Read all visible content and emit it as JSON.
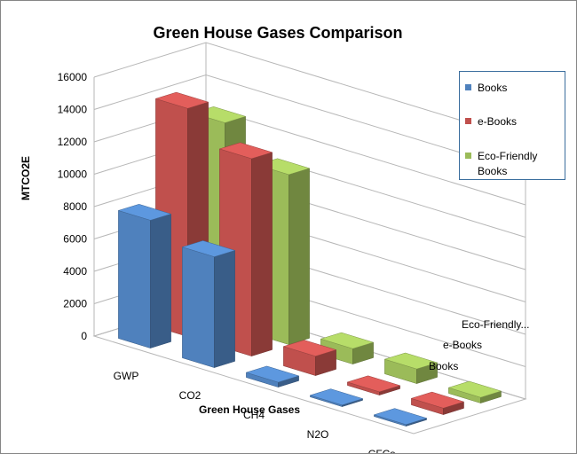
{
  "chart_data": {
    "type": "bar",
    "subtype": "3d-clustered-column",
    "title": "Green House Gases Comparison",
    "xlabel": "Green House Gases",
    "ylabel": "MTCO2E",
    "categories": [
      "GWP",
      "CO2",
      "CH4",
      "N2O",
      "CFCs"
    ],
    "depth_labels": [
      "Eco-Friendly...",
      "e-Books",
      "Books"
    ],
    "yticks": [
      0,
      2000,
      4000,
      6000,
      8000,
      10000,
      12000,
      14000,
      16000
    ],
    "ylim": [
      0,
      16000
    ],
    "grid": true,
    "legend_position": "right",
    "series": [
      {
        "name": "Books",
        "color": "#4f81bd",
        "values": [
          7900,
          6850,
          300,
          100,
          100
        ]
      },
      {
        "name": "e-Books",
        "color": "#c0504d",
        "values": [
          14100,
          12200,
          1200,
          200,
          400
        ]
      },
      {
        "name": "Eco-Friendly Books",
        "color": "#9bbb59",
        "values": [
          12500,
          10500,
          950,
          900,
          350
        ]
      }
    ]
  }
}
